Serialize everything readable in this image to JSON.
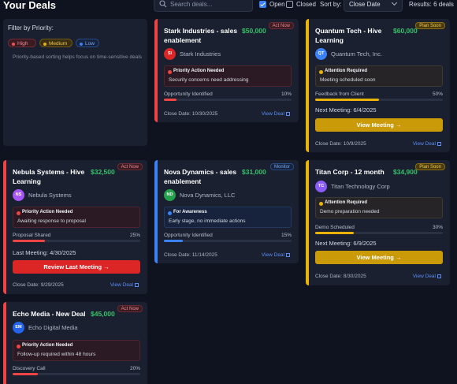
{
  "header": {
    "title": "Your Deals",
    "search_placeholder": "Search deals...",
    "open_label": "Open",
    "open_checked": true,
    "closed_label": "Closed",
    "closed_checked": false,
    "sort_label": "Sort by:",
    "sort_value": "Close Date",
    "results": "Results: 6 deals"
  },
  "filter": {
    "title": "Filter by Priority:",
    "chips": [
      "High",
      "Medium",
      "Low"
    ],
    "hint": "Priority-based sorting helps focus on time-sensitive deals"
  },
  "colors": {
    "high": "#ef4444",
    "medium": "#eab308",
    "low": "#3b82f6",
    "amount": "#34c26a"
  },
  "deals": [
    {
      "title": "Stark Industries - sales enablement",
      "amount": "$50,000",
      "badge": "Act Now",
      "initials": "SI",
      "avatar_color": "#dc2626",
      "company": "Stark Industries",
      "alert_title": "Priority Action Needed",
      "alert_text": "Security concerns need addressing",
      "stage": "Opportunity Identified",
      "pct": "10%",
      "progress": 0.1,
      "close": "Close Date: 10/30/2025",
      "view": "View Deal"
    },
    {
      "title": "Quantum Tech - Hive Learning",
      "amount": "$60,000",
      "badge": "Plan Soon",
      "initials": "QT",
      "avatar_color": "#3b82f6",
      "company": "Quantum Tech, Inc.",
      "alert_title": "Attention Required",
      "alert_text": "Meeting scheduled soon",
      "stage": "Feedback from Client",
      "pct": "50%",
      "progress": 0.5,
      "meeting": "Next Meeting: 6/4/2025",
      "cta": "View Meeting →",
      "close": "Close Date: 10/9/2025",
      "view": "View Deal"
    },
    {
      "title": "Nebula Systems - Hive Learning",
      "amount": "$32,500",
      "badge": "Act Now",
      "initials": "NS",
      "avatar_color": "#a855f7",
      "company": "Nebula Systems",
      "alert_title": "Priority Action Needed",
      "alert_text": "Awaiting response to proposal",
      "stage": "Proposal Shared",
      "pct": "25%",
      "progress": 0.25,
      "meeting": "Last Meeting: 4/30/2025",
      "cta": "Review Last Meeting →",
      "close": "Close Date: 9/29/2025",
      "view": "View Deal"
    },
    {
      "title": "Nova Dynamics - sales enablement",
      "amount": "$31,000",
      "badge": "Monitor",
      "initials": "ND",
      "avatar_color": "#22a04b",
      "company": "Nova Dynamics, LLC",
      "alert_title": "For Awareness",
      "alert_text": "Early stage, no immediate actions",
      "stage": "Opportunity Identified",
      "pct": "15%",
      "progress": 0.15,
      "close": "Close Date: 11/14/2025",
      "view": "View Deal"
    },
    {
      "title": "Titan Corp - 12 month",
      "amount": "$34,900",
      "badge": "Plan Soon",
      "initials": "TC",
      "avatar_color": "#8b5cf6",
      "company": "Titan Technology Corp",
      "alert_title": "Attention Required",
      "alert_text": "Demo preparation needed",
      "stage": "Demo Scheduled",
      "pct": "30%",
      "progress": 0.3,
      "meeting": "Next Meeting: 6/9/2025",
      "cta": "View Meeting →",
      "close": "Close Date: 8/30/2025",
      "view": "View Deal"
    },
    {
      "title": "Echo Media - New Deal",
      "amount": "$45,000",
      "badge": "Act Now",
      "initials": "EM",
      "avatar_color": "#2563eb",
      "company": "Echo Digital Media",
      "alert_title": "Priority Action Needed",
      "alert_text": "Follow-up required within 48 hours",
      "stage": "Discovery Call",
      "pct": "20%",
      "progress": 0.2
    }
  ]
}
